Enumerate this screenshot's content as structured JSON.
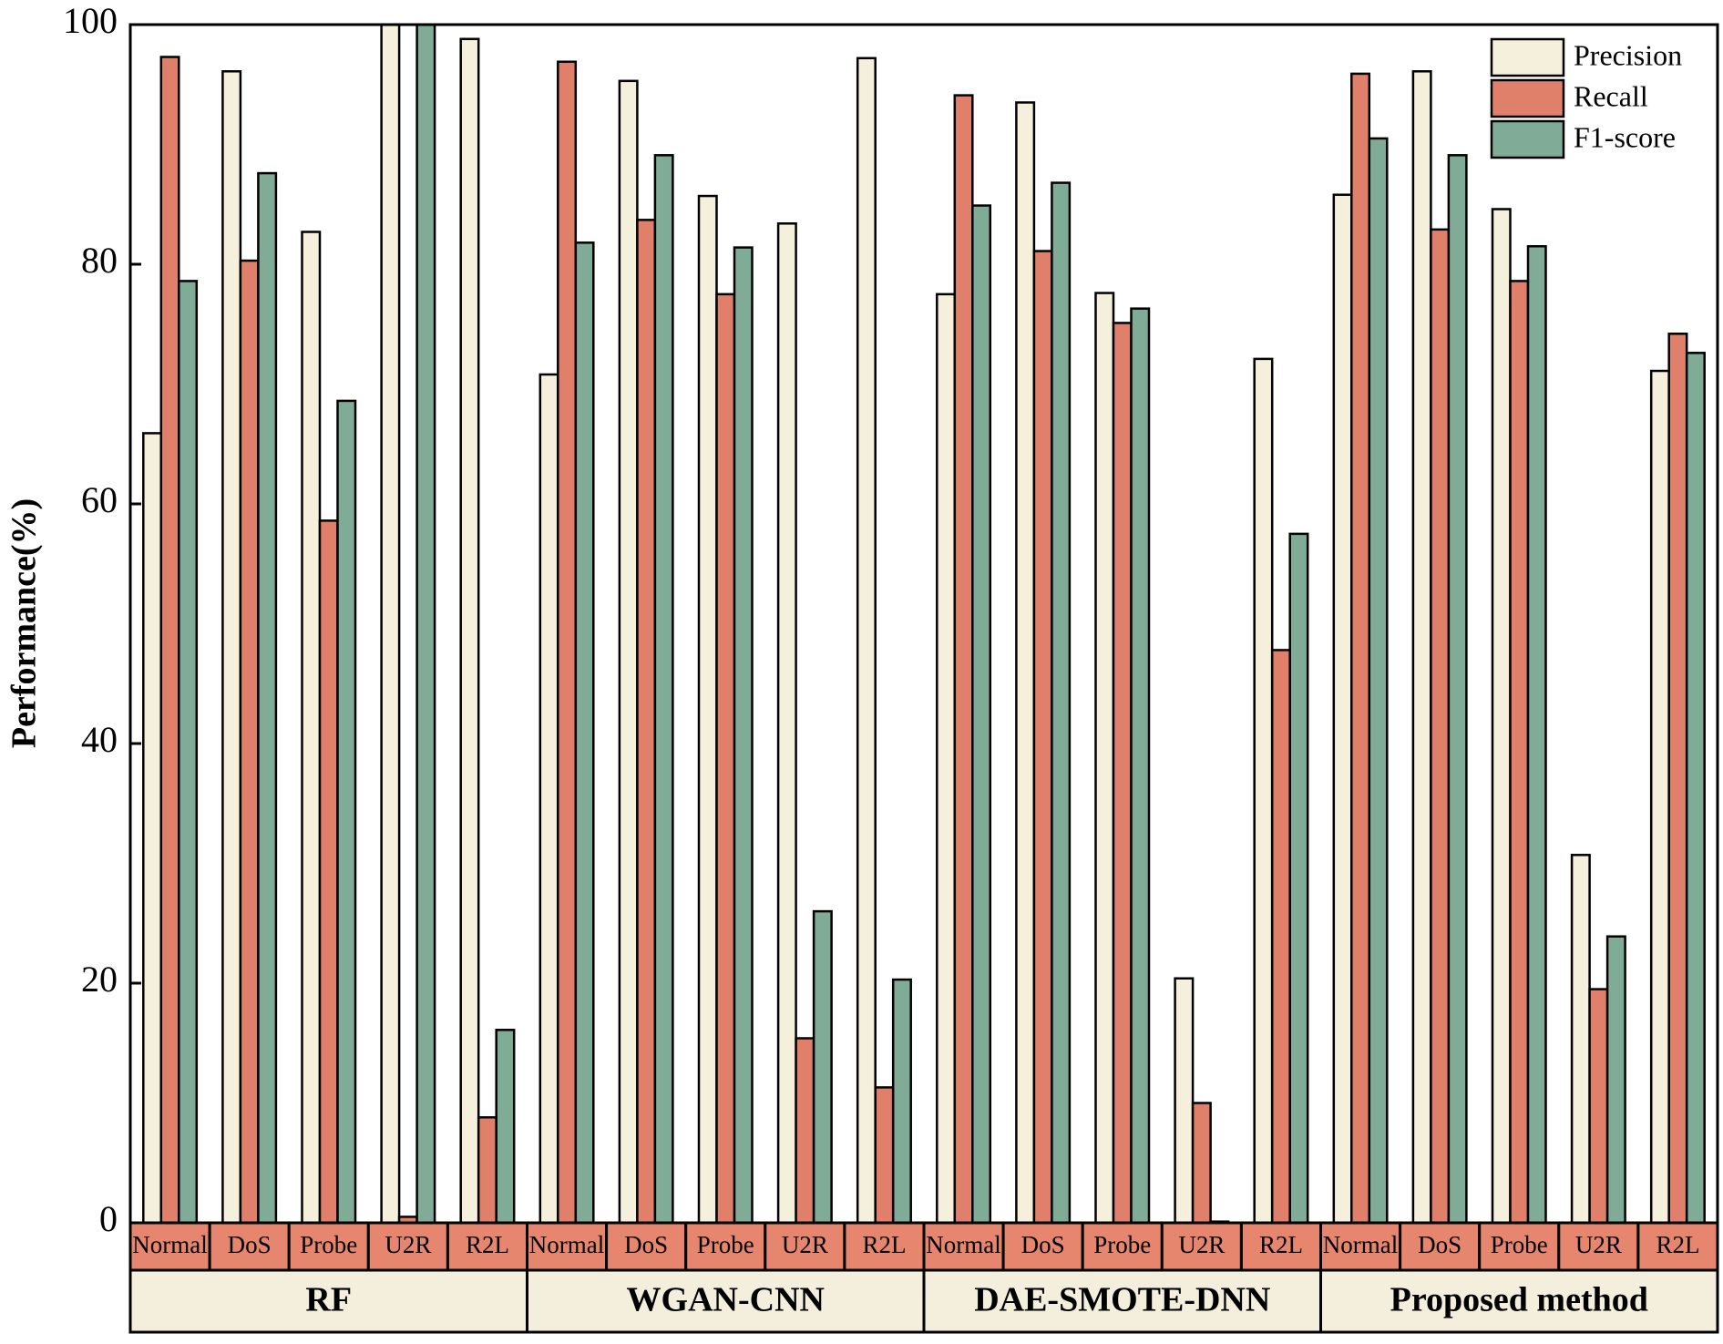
{
  "chart_data": {
    "type": "bar",
    "y_label": "Performance(%)",
    "groups": [
      {
        "name": "RF",
        "categories": [
          "Normal",
          "DoS",
          "Probe",
          "U2R",
          "R2L"
        ]
      },
      {
        "name": "WGAN-CNN",
        "categories": [
          "Normal",
          "DoS",
          "Probe",
          "U2R",
          "R2L"
        ]
      },
      {
        "name": "DAE-SMOTE-DNN",
        "categories": [
          "Normal",
          "DoS",
          "Probe",
          "U2R",
          "R2L"
        ]
      },
      {
        "name": "Proposed method",
        "categories": [
          "Normal",
          "DoS",
          "Probe",
          "U2R",
          "R2L"
        ]
      }
    ],
    "series": [
      {
        "name": "Precision",
        "color": "#f5f0dc",
        "values": [
          65.9,
          96.1,
          82.7,
          100,
          98.8,
          70.8,
          95.3,
          85.7,
          83.4,
          97.2,
          77.5,
          93.5,
          77.6,
          20.4,
          72.1,
          85.8,
          96.1,
          84.6,
          30.7,
          71.1
        ]
      },
      {
        "name": "Recall",
        "color": "#e0806a",
        "values": [
          97.3,
          80.3,
          58.6,
          0.5,
          8.8,
          96.9,
          83.7,
          77.5,
          15.4,
          11.3,
          94.1,
          81.1,
          75.1,
          10.0,
          47.8,
          95.9,
          82.9,
          78.6,
          19.5,
          74.2
        ]
      },
      {
        "name": "F1-score",
        "color": "#7fab97",
        "values": [
          78.6,
          87.6,
          68.6,
          100,
          16.1,
          81.8,
          89.1,
          81.4,
          26.0,
          20.3,
          84.9,
          86.8,
          76.3,
          0.1,
          57.5,
          90.5,
          89.1,
          81.5,
          23.9,
          72.6
        ]
      }
    ],
    "ylim": [
      0,
      100
    ],
    "yticks": [
      0,
      20,
      40,
      60,
      80,
      100
    ],
    "legend": "top-right"
  }
}
